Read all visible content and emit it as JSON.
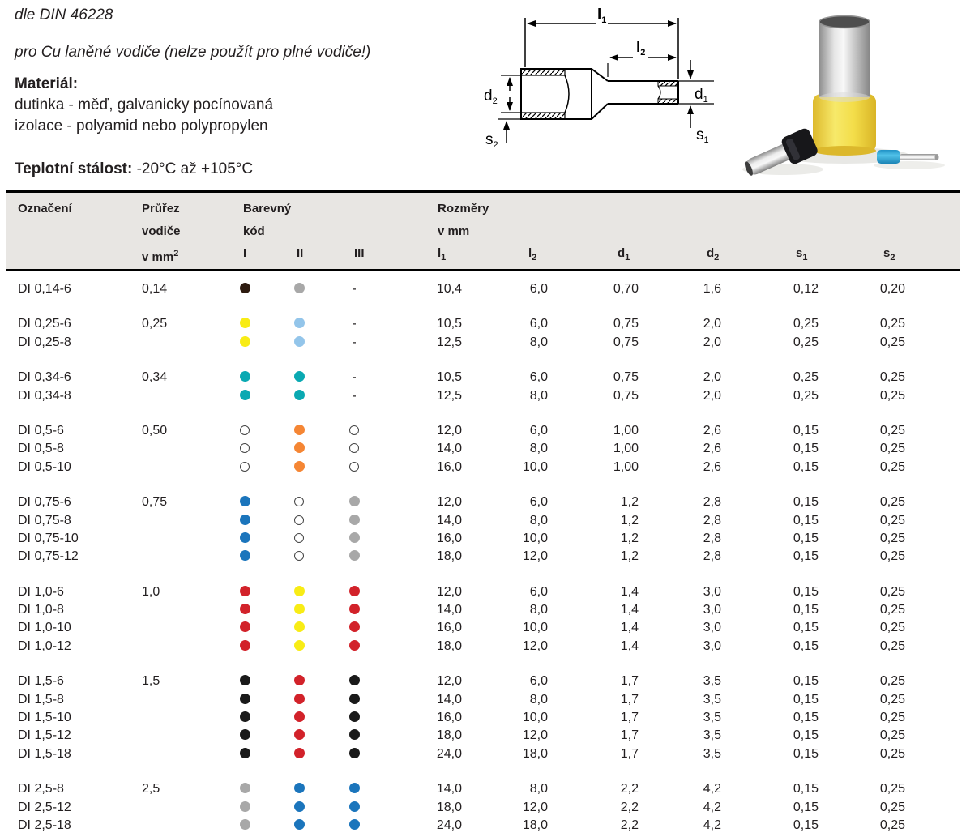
{
  "intro": {
    "standard": "dle DIN 46228",
    "usage": "pro Cu laněné vodiče (nelze použít pro plné vodiče!)",
    "material_label": "Materiál:",
    "material_lines": [
      "dutinka - měď, galvanicky pocínovaná",
      "izolace - polyamid nebo polypropylen"
    ],
    "temp_label": "Teplotní stálost:",
    "temp_value": " -20°C až +105°C"
  },
  "diagram": {
    "l1": {
      "base": "l",
      "sub": "1"
    },
    "l2": {
      "base": "l",
      "sub": "2"
    },
    "d1": {
      "base": "d",
      "sub": "1"
    },
    "d2": {
      "base": "d",
      "sub": "2"
    },
    "s1": {
      "base": "s",
      "sub": "1"
    },
    "s2": {
      "base": "s",
      "sub": "2"
    }
  },
  "table": {
    "headers": {
      "oznaceni": "Označení",
      "prurez_lines": [
        "Průřez",
        "vodiče",
        "v mm"
      ],
      "prurez_sup": "2",
      "barevny_lines": [
        "Barevný",
        "kód"
      ],
      "code_cols": [
        "I",
        "II",
        "III"
      ],
      "rozmery_lines": [
        "Rozměry",
        "v mm"
      ],
      "dims": [
        {
          "base": "l",
          "sub": "1"
        },
        {
          "base": "l",
          "sub": "2"
        },
        {
          "base": "d",
          "sub": "1"
        },
        {
          "base": "d",
          "sub": "2"
        },
        {
          "base": "s",
          "sub": "1"
        },
        {
          "base": "s",
          "sub": "2"
        }
      ]
    },
    "groups": [
      {
        "prurez": "0,14",
        "rows": [
          {
            "name": "DI 0,14-6",
            "dots": [
              "darkbrown",
              "gray",
              "-"
            ],
            "vals": [
              "10,4",
              "6,0",
              "0,70",
              "1,6",
              "0,12",
              "0,20"
            ]
          }
        ]
      },
      {
        "prurez": "0,25",
        "rows": [
          {
            "name": "DI 0,25-6",
            "dots": [
              "yellow",
              "lightblue",
              "-"
            ],
            "vals": [
              "10,5",
              "6,0",
              "0,75",
              "2,0",
              "0,25",
              "0,25"
            ]
          },
          {
            "name": "DI 0,25-8",
            "dots": [
              "yellow",
              "lightblue",
              "-"
            ],
            "vals": [
              "12,5",
              "8,0",
              "0,75",
              "2,0",
              "0,25",
              "0,25"
            ]
          }
        ]
      },
      {
        "prurez": "0,34",
        "rows": [
          {
            "name": "DI 0,34-6",
            "dots": [
              "teal",
              "teal",
              "-"
            ],
            "vals": [
              "10,5",
              "6,0",
              "0,75",
              "2,0",
              "0,25",
              "0,25"
            ]
          },
          {
            "name": "DI 0,34-8",
            "dots": [
              "teal",
              "teal",
              "-"
            ],
            "vals": [
              "12,5",
              "8,0",
              "0,75",
              "2,0",
              "0,25",
              "0,25"
            ]
          }
        ]
      },
      {
        "prurez": "0,50",
        "rows": [
          {
            "name": "DI 0,5-6",
            "dots": [
              "white",
              "orange",
              "white"
            ],
            "vals": [
              "12,0",
              "6,0",
              "1,00",
              "2,6",
              "0,15",
              "0,25"
            ]
          },
          {
            "name": "DI 0,5-8",
            "dots": [
              "white",
              "orange",
              "white"
            ],
            "vals": [
              "14,0",
              "8,0",
              "1,00",
              "2,6",
              "0,15",
              "0,25"
            ]
          },
          {
            "name": "DI 0,5-10",
            "dots": [
              "white",
              "orange",
              "white"
            ],
            "vals": [
              "16,0",
              "10,0",
              "1,00",
              "2,6",
              "0,15",
              "0,25"
            ]
          }
        ]
      },
      {
        "prurez": "0,75",
        "rows": [
          {
            "name": "DI 0,75-6",
            "dots": [
              "blue",
              "white",
              "gray"
            ],
            "vals": [
              "12,0",
              "6,0",
              "1,2",
              "2,8",
              "0,15",
              "0,25"
            ]
          },
          {
            "name": "DI 0,75-8",
            "dots": [
              "blue",
              "white",
              "gray"
            ],
            "vals": [
              "14,0",
              "8,0",
              "1,2",
              "2,8",
              "0,15",
              "0,25"
            ]
          },
          {
            "name": "DI 0,75-10",
            "dots": [
              "blue",
              "white",
              "gray"
            ],
            "vals": [
              "16,0",
              "10,0",
              "1,2",
              "2,8",
              "0,15",
              "0,25"
            ]
          },
          {
            "name": "DI 0,75-12",
            "dots": [
              "blue",
              "white",
              "gray"
            ],
            "vals": [
              "18,0",
              "12,0",
              "1,2",
              "2,8",
              "0,15",
              "0,25"
            ]
          }
        ]
      },
      {
        "prurez": "1,0",
        "rows": [
          {
            "name": "DI 1,0-6",
            "dots": [
              "red",
              "yellow",
              "red"
            ],
            "vals": [
              "12,0",
              "6,0",
              "1,4",
              "3,0",
              "0,15",
              "0,25"
            ]
          },
          {
            "name": "DI 1,0-8",
            "dots": [
              "red",
              "yellow",
              "red"
            ],
            "vals": [
              "14,0",
              "8,0",
              "1,4",
              "3,0",
              "0,15",
              "0,25"
            ]
          },
          {
            "name": "DI 1,0-10",
            "dots": [
              "red",
              "yellow",
              "red"
            ],
            "vals": [
              "16,0",
              "10,0",
              "1,4",
              "3,0",
              "0,15",
              "0,25"
            ]
          },
          {
            "name": "DI 1,0-12",
            "dots": [
              "red",
              "yellow",
              "red"
            ],
            "vals": [
              "18,0",
              "12,0",
              "1,4",
              "3,0",
              "0,15",
              "0,25"
            ]
          }
        ]
      },
      {
        "prurez": "1,5",
        "rows": [
          {
            "name": "DI 1,5-6",
            "dots": [
              "black",
              "red",
              "black"
            ],
            "vals": [
              "12,0",
              "6,0",
              "1,7",
              "3,5",
              "0,15",
              "0,25"
            ]
          },
          {
            "name": "DI 1,5-8",
            "dots": [
              "black",
              "red",
              "black"
            ],
            "vals": [
              "14,0",
              "8,0",
              "1,7",
              "3,5",
              "0,15",
              "0,25"
            ]
          },
          {
            "name": "DI 1,5-10",
            "dots": [
              "black",
              "red",
              "black"
            ],
            "vals": [
              "16,0",
              "10,0",
              "1,7",
              "3,5",
              "0,15",
              "0,25"
            ]
          },
          {
            "name": "DI 1,5-12",
            "dots": [
              "black",
              "red",
              "black"
            ],
            "vals": [
              "18,0",
              "12,0",
              "1,7",
              "3,5",
              "0,15",
              "0,25"
            ]
          },
          {
            "name": "DI 1,5-18",
            "dots": [
              "black",
              "red",
              "black"
            ],
            "vals": [
              "24,0",
              "18,0",
              "1,7",
              "3,5",
              "0,15",
              "0,25"
            ]
          }
        ]
      },
      {
        "prurez": "2,5",
        "rows": [
          {
            "name": "DI 2,5-8",
            "dots": [
              "gray",
              "blue",
              "blue"
            ],
            "vals": [
              "14,0",
              "8,0",
              "2,2",
              "4,2",
              "0,15",
              "0,25"
            ]
          },
          {
            "name": "DI 2,5-12",
            "dots": [
              "gray",
              "blue",
              "blue"
            ],
            "vals": [
              "18,0",
              "12,0",
              "2,2",
              "4,2",
              "0,15",
              "0,25"
            ]
          },
          {
            "name": "DI 2,5-18",
            "dots": [
              "gray",
              "blue",
              "blue"
            ],
            "vals": [
              "24,0",
              "18,0",
              "2,2",
              "4,2",
              "0,15",
              "0,25"
            ]
          }
        ]
      }
    ]
  },
  "dot_colors": {
    "darkbrown": "#2e1b10",
    "gray": "#a8a8a8",
    "yellow": "#f8ec15",
    "lightblue": "#93c5ea",
    "teal": "#0aa9b2",
    "white": "#ffffff",
    "orange": "#f58634",
    "blue": "#1b75bc",
    "red": "#d2222a",
    "black": "#1a1a1a"
  }
}
